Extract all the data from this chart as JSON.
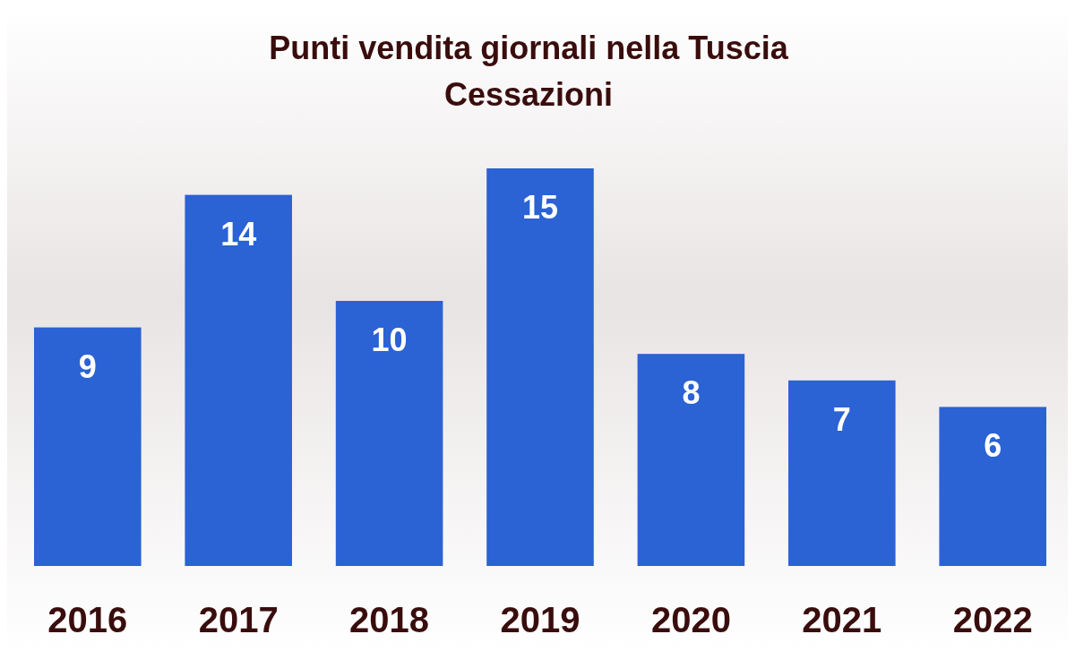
{
  "chart_data": {
    "type": "bar",
    "title": "Punti vendita giornali nella Tuscia",
    "subtitle": "Cessazioni",
    "categories": [
      "2016",
      "2017",
      "2018",
      "2019",
      "2020",
      "2021",
      "2022"
    ],
    "values": [
      9,
      14,
      10,
      15,
      8,
      7,
      6
    ],
    "color": "#2b62d4",
    "data_labels": true
  }
}
